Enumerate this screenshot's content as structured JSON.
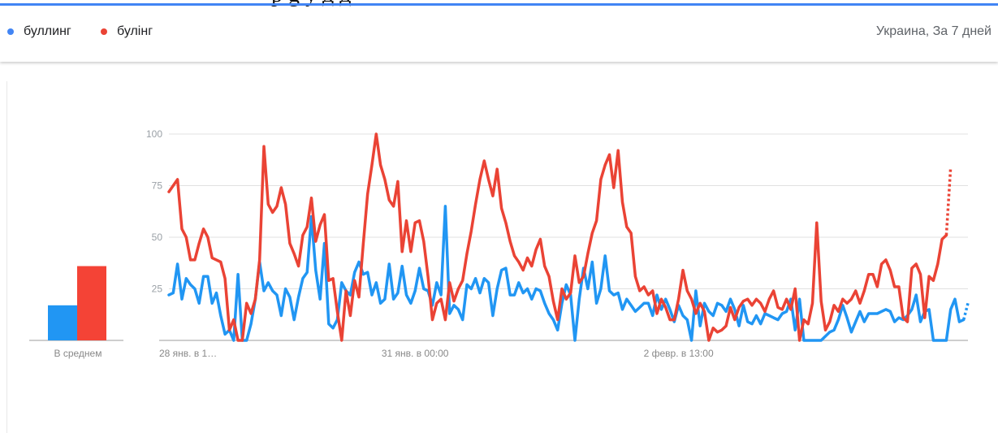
{
  "header": {
    "legend": [
      {
        "label": "буллинг",
        "color": "#4285f4",
        "icon": "blue-dot-icon"
      },
      {
        "label": "булінг",
        "color": "#ea4335",
        "icon": "red-dot-icon"
      }
    ],
    "region_period": "Украина, За 7 дней"
  },
  "chart_data": [
    {
      "type": "bar",
      "categories": [
        "В среднем"
      ],
      "series": [
        {
          "name": "буллинг",
          "color": "#2196f3",
          "values": [
            17
          ]
        },
        {
          "name": "булінг",
          "color": "#f44336",
          "values": [
            36
          ]
        }
      ],
      "ylim": [
        0,
        100
      ],
      "xlabel": "",
      "ylabel": ""
    },
    {
      "type": "line",
      "title": "",
      "xlabel": "",
      "ylabel": "",
      "ylim": [
        0,
        100
      ],
      "yticks": [
        25,
        50,
        75,
        100
      ],
      "grid": true,
      "xtick_labels": [
        {
          "label": "28 янв. в 1…",
          "index": 0
        },
        {
          "label": "31 янв. в 00:00",
          "index": 57
        },
        {
          "label": "2 февр. в 13:00",
          "index": 118
        }
      ],
      "partial_last_points": 1,
      "series": [
        {
          "name": "буллинг",
          "color": "#2196f3",
          "values": [
            22,
            23,
            37,
            20,
            30,
            27,
            25,
            18,
            31,
            31,
            18,
            23,
            12,
            3,
            5,
            0,
            32,
            0,
            0,
            8,
            20,
            38,
            24,
            28,
            24,
            22,
            12,
            25,
            21,
            10,
            21,
            30,
            33,
            60,
            34,
            20,
            47,
            8,
            6,
            10,
            28,
            24,
            22,
            33,
            38,
            32,
            33,
            22,
            28,
            18,
            20,
            37,
            20,
            23,
            36,
            22,
            18,
            24,
            35,
            25,
            24,
            17,
            28,
            22,
            65,
            13,
            17,
            15,
            10,
            27,
            25,
            30,
            23,
            30,
            28,
            12,
            25,
            34,
            35,
            22,
            22,
            28,
            23,
            25,
            20,
            25,
            24,
            18,
            13,
            10,
            5,
            18,
            27,
            22,
            0,
            20,
            35,
            25,
            38,
            18,
            25,
            41,
            24,
            22,
            23,
            15,
            20,
            17,
            14,
            16,
            18,
            18,
            12,
            22,
            15,
            20,
            15,
            9,
            17,
            12,
            10,
            0,
            24,
            7,
            18,
            14,
            12,
            18,
            17,
            14,
            20,
            15,
            7,
            17,
            9,
            8,
            12,
            8,
            13,
            12,
            11,
            10,
            13,
            14,
            20,
            5,
            20,
            0,
            0,
            0,
            0,
            0,
            2,
            4,
            5,
            10,
            17,
            11,
            4,
            9,
            14,
            9,
            13,
            13,
            13,
            14,
            15,
            14,
            9,
            11,
            10,
            12,
            15,
            22,
            9,
            14,
            15,
            0,
            0,
            0,
            0,
            15,
            20,
            9,
            10,
            18
          ]
        },
        {
          "name": "булінг",
          "color": "#ea4335",
          "values": [
            72,
            75,
            78,
            54,
            50,
            39,
            39,
            47,
            54,
            50,
            40,
            39,
            38,
            30,
            5,
            10,
            0,
            0,
            18,
            13,
            20,
            39,
            94,
            66,
            62,
            65,
            74,
            66,
            47,
            42,
            36,
            51,
            55,
            69,
            48,
            56,
            61,
            29,
            30,
            14,
            0,
            24,
            12,
            29,
            21,
            47,
            71,
            85,
            100,
            85,
            78,
            68,
            65,
            77,
            43,
            58,
            43,
            57,
            58,
            48,
            31,
            10,
            18,
            20,
            10,
            28,
            19,
            25,
            29,
            42,
            53,
            66,
            78,
            87,
            78,
            70,
            83,
            64,
            57,
            48,
            41,
            38,
            34,
            40,
            36,
            44,
            49,
            36,
            31,
            19,
            10,
            25,
            20,
            23,
            41,
            28,
            31,
            42,
            52,
            58,
            78,
            85,
            90,
            74,
            92,
            67,
            55,
            52,
            31,
            24,
            26,
            22,
            24,
            13,
            20,
            16,
            10,
            10,
            20,
            34,
            24,
            20,
            13,
            18,
            14,
            0,
            6,
            4,
            5,
            7,
            16,
            10,
            16,
            19,
            20,
            17,
            20,
            18,
            14,
            20,
            24,
            16,
            15,
            20,
            15,
            25,
            0,
            10,
            8,
            18,
            57,
            19,
            5,
            9,
            17,
            14,
            20,
            18,
            20,
            24,
            18,
            24,
            32,
            32,
            26,
            37,
            39,
            34,
            26,
            26,
            11,
            9,
            35,
            37,
            32,
            11,
            31,
            29,
            37,
            49,
            51,
            84
          ]
        }
      ]
    }
  ]
}
